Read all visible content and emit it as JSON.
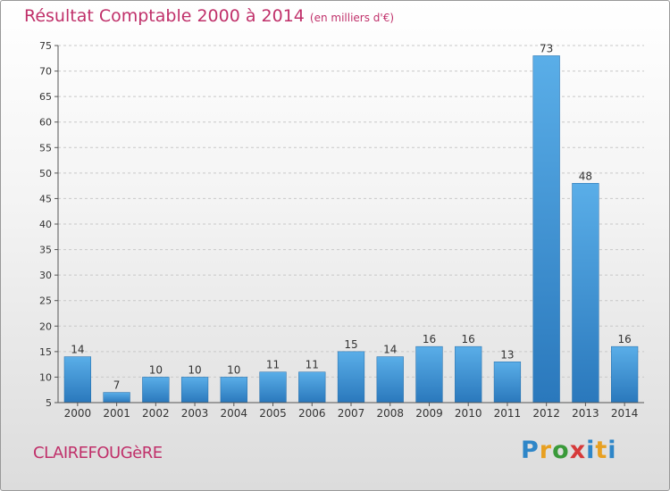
{
  "header": {
    "title": "Résultat Comptable 2000 à 2014",
    "subtitle": "(en milliers d'€)"
  },
  "commune": "CLAIREFOUGèRE",
  "logo": "Proxiti",
  "chart_data": {
    "type": "bar",
    "title": "Résultat Comptable 2000 à 2014",
    "subtitle": "(en milliers d'€)",
    "xlabel": "",
    "ylabel": "",
    "categories": [
      "2000",
      "2001",
      "2002",
      "2003",
      "2004",
      "2005",
      "2006",
      "2007",
      "2008",
      "2009",
      "2010",
      "2011",
      "2012",
      "2013",
      "2014"
    ],
    "values": [
      14,
      7,
      10,
      10,
      10,
      11,
      11,
      15,
      14,
      16,
      16,
      13,
      73,
      48,
      16
    ],
    "ylim": [
      5,
      75
    ],
    "yticks": [
      5,
      10,
      15,
      20,
      25,
      30,
      35,
      40,
      45,
      50,
      55,
      60,
      65,
      70,
      75
    ],
    "grid": true,
    "bar_color": "#3a8fd4"
  }
}
